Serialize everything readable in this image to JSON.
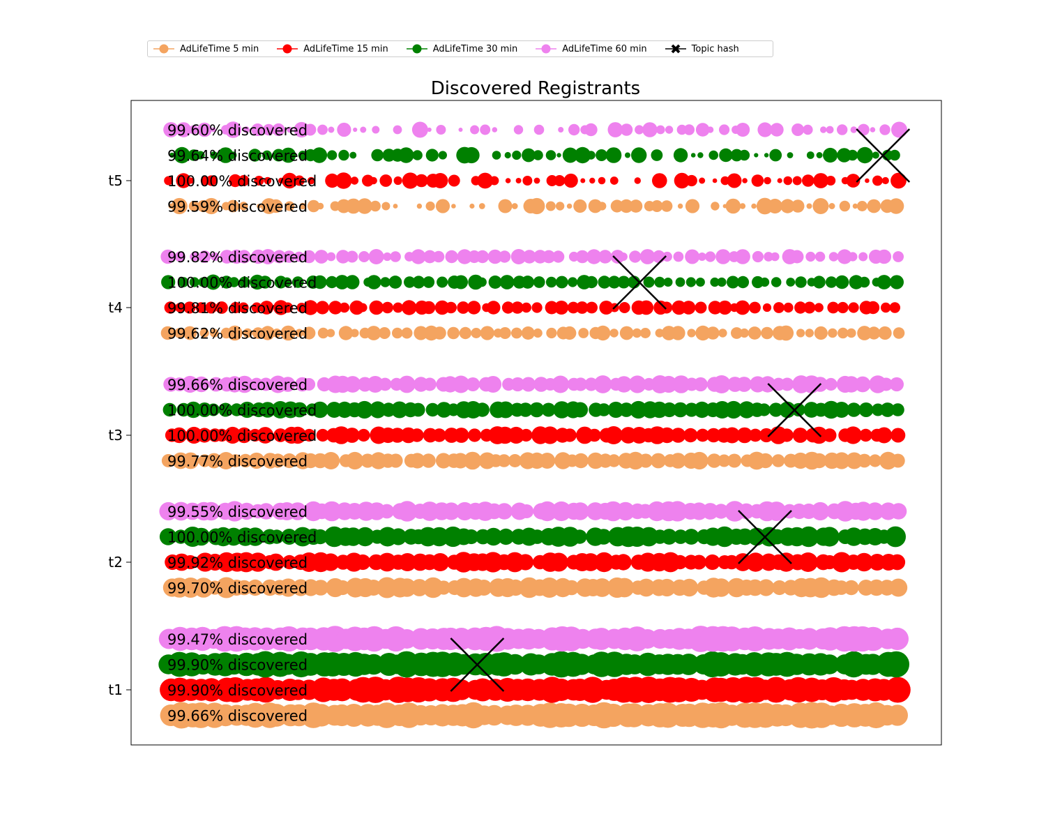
{
  "chart_data": {
    "type": "scatter",
    "title": "Discovered Registrants",
    "xlabel": "",
    "ylabel": "",
    "grid": false,
    "legend_position": "top-center",
    "y_categories": [
      "t1",
      "t2",
      "t3",
      "t4",
      "t5"
    ],
    "series": [
      {
        "name": "AdLifeTime 5 min",
        "color": "#f4a460",
        "offset": -0.2,
        "discovered_pct": [
          "99.66% discovered",
          "99.70% discovered",
          "99.77% discovered",
          "99.62% discovered",
          "99.59% discovered"
        ]
      },
      {
        "name": "AdLifeTime 15 min",
        "color": "#ff0000",
        "offset": 0.0,
        "discovered_pct": [
          "99.90% discovered",
          "99.92% discovered",
          "100.00% discovered",
          "99.81% discovered",
          "100.00% discovered"
        ]
      },
      {
        "name": "AdLifeTime 30 min",
        "color": "#008000",
        "offset": 0.2,
        "discovered_pct": [
          "99.90% discovered",
          "100.00% discovered",
          "100.00% discovered",
          "100.00% discovered",
          "99.64% discovered"
        ]
      },
      {
        "name": "AdLifeTime 60 min",
        "color": "#ee82ee",
        "offset": 0.4,
        "discovered_pct": [
          "99.47% discovered",
          "99.55% discovered",
          "99.66% discovered",
          "99.82% discovered",
          "99.60% discovered"
        ]
      }
    ],
    "topic_hash": {
      "name": "Topic hash",
      "color": "#000000",
      "x_fraction": [
        0.42,
        0.81,
        0.85,
        0.64,
        0.97
      ]
    }
  }
}
